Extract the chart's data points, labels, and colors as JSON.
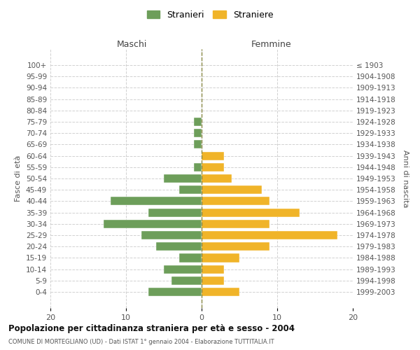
{
  "age_groups": [
    "0-4",
    "5-9",
    "10-14",
    "15-19",
    "20-24",
    "25-29",
    "30-34",
    "35-39",
    "40-44",
    "45-49",
    "50-54",
    "55-59",
    "60-64",
    "65-69",
    "70-74",
    "75-79",
    "80-84",
    "85-89",
    "90-94",
    "95-99",
    "100+"
  ],
  "birth_years": [
    "1999-2003",
    "1994-1998",
    "1989-1993",
    "1984-1988",
    "1979-1983",
    "1974-1978",
    "1969-1973",
    "1964-1968",
    "1959-1963",
    "1954-1958",
    "1949-1953",
    "1944-1948",
    "1939-1943",
    "1934-1938",
    "1929-1933",
    "1924-1928",
    "1919-1923",
    "1914-1918",
    "1909-1913",
    "1904-1908",
    "≤ 1903"
  ],
  "males": [
    7,
    4,
    5,
    3,
    6,
    8,
    13,
    7,
    12,
    3,
    5,
    1,
    0,
    1,
    1,
    1,
    0,
    0,
    0,
    0,
    0
  ],
  "females": [
    5,
    3,
    3,
    5,
    9,
    18,
    9,
    13,
    9,
    8,
    4,
    3,
    3,
    0,
    0,
    0,
    0,
    0,
    0,
    0,
    0
  ],
  "male_color": "#6d9e5a",
  "female_color": "#f0b429",
  "grid_color": "#cccccc",
  "center_line_color": "#888844",
  "bg_color": "#ffffff",
  "title": "Popolazione per cittadinanza straniera per età e sesso - 2004",
  "subtitle": "COMUNE DI MORTEGLIANO (UD) - Dati ISTAT 1° gennaio 2004 - Elaborazione TUTTITALIA.IT",
  "ylabel_left": "Fasce di età",
  "ylabel_right": "Anni di nascita",
  "xlabel_left": "Maschi",
  "xlabel_top_right": "Femmine",
  "legend_male": "Stranieri",
  "legend_female": "Straniere",
  "xlim": [
    -20,
    20
  ],
  "xticks": [
    -20,
    -10,
    0,
    10,
    20
  ],
  "xticklabels": [
    "20",
    "10",
    "0",
    "10",
    "20"
  ]
}
